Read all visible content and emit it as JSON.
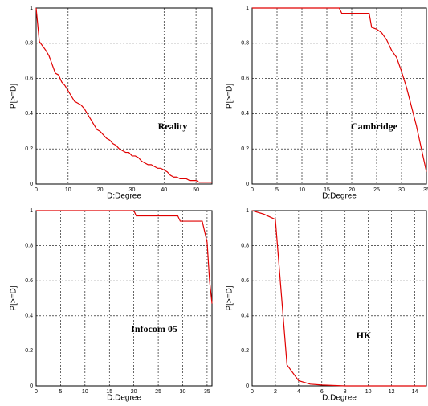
{
  "chart_data": [
    {
      "type": "line",
      "annotation": "Reality",
      "xlabel": "D:Degree",
      "ylabel": "P[>=D]",
      "color": "#e00000",
      "grid": true,
      "xlim": [
        0,
        55
      ],
      "ylim": [
        0,
        1
      ],
      "xticks": [
        0,
        10,
        20,
        30,
        40,
        50
      ],
      "yticks": [
        0,
        0.2,
        0.4,
        0.6,
        0.8,
        1
      ],
      "x": [
        0,
        1,
        3,
        4,
        5,
        6,
        7,
        8,
        9,
        10,
        11,
        12,
        13,
        14,
        15,
        16,
        17,
        18,
        19,
        20,
        21,
        22,
        23,
        24,
        25,
        26,
        27,
        28,
        29,
        30,
        31,
        32,
        33,
        34,
        35,
        36,
        37,
        38,
        39,
        40,
        41,
        42,
        43,
        44,
        45,
        47,
        48,
        50,
        51,
        55
      ],
      "values": [
        1,
        0.81,
        0.76,
        0.73,
        0.68,
        0.63,
        0.62,
        0.58,
        0.56,
        0.53,
        0.5,
        0.47,
        0.46,
        0.45,
        0.43,
        0.4,
        0.37,
        0.34,
        0.31,
        0.3,
        0.28,
        0.26,
        0.25,
        0.23,
        0.22,
        0.2,
        0.19,
        0.18,
        0.18,
        0.16,
        0.16,
        0.15,
        0.13,
        0.12,
        0.11,
        0.11,
        0.1,
        0.09,
        0.09,
        0.08,
        0.07,
        0.05,
        0.04,
        0.04,
        0.03,
        0.03,
        0.02,
        0.02,
        0.01,
        0.01
      ]
    },
    {
      "type": "line",
      "annotation": "Cambridge",
      "xlabel": "D:Degree",
      "ylabel": "P[>=D]",
      "color": "#e00000",
      "grid": true,
      "xlim": [
        0,
        35
      ],
      "ylim": [
        0,
        1
      ],
      "xticks": [
        0,
        5,
        10,
        15,
        20,
        25,
        30,
        35
      ],
      "yticks": [
        0,
        0.2,
        0.4,
        0.6,
        0.8,
        1
      ],
      "x": [
        0,
        17.5,
        18,
        23.5,
        24,
        25,
        26,
        27,
        28,
        29,
        30,
        31,
        32,
        33,
        34,
        35
      ],
      "values": [
        1,
        1,
        0.97,
        0.97,
        0.89,
        0.88,
        0.86,
        0.82,
        0.76,
        0.72,
        0.64,
        0.55,
        0.44,
        0.33,
        0.2,
        0.07
      ]
    },
    {
      "type": "line",
      "annotation": "Infocom 05",
      "xlabel": "D:Degree",
      "ylabel": "P[>=D]",
      "color": "#e00000",
      "grid": true,
      "xlim": [
        0,
        36
      ],
      "ylim": [
        0,
        1
      ],
      "xticks": [
        0,
        5,
        10,
        15,
        20,
        25,
        30,
        35
      ],
      "yticks": [
        0,
        0.2,
        0.4,
        0.6,
        0.8,
        1
      ],
      "x": [
        0,
        20,
        20.5,
        29,
        29.5,
        34,
        35,
        35.5,
        36
      ],
      "values": [
        1,
        1,
        0.97,
        0.97,
        0.94,
        0.94,
        0.82,
        0.6,
        0.47
      ]
    },
    {
      "type": "line",
      "annotation": "HK",
      "xlabel": "D:Degree",
      "ylabel": "P[>=D]",
      "color": "#e00000",
      "grid": true,
      "xlim": [
        0,
        15
      ],
      "ylim": [
        0,
        1
      ],
      "xticks": [
        0,
        2,
        4,
        6,
        8,
        10,
        12,
        14
      ],
      "yticks": [
        0,
        0.2,
        0.4,
        0.6,
        0.8,
        1
      ],
      "x": [
        0,
        1,
        2,
        3,
        4,
        5,
        6,
        8,
        15
      ],
      "values": [
        1,
        0.98,
        0.95,
        0.12,
        0.03,
        0.01,
        0.005,
        0,
        0
      ]
    }
  ]
}
